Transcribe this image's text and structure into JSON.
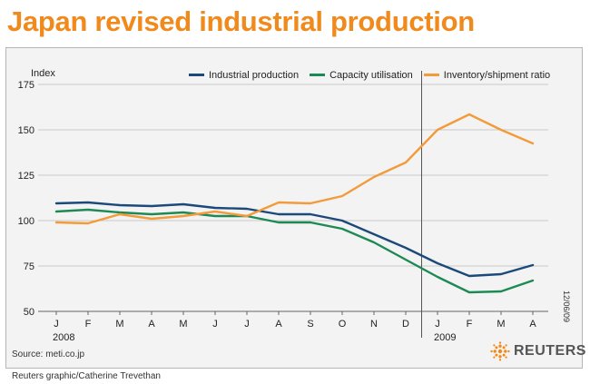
{
  "title": "Japan revised industrial production",
  "source": "Source: meti.co.jp",
  "credit": "Reuters graphic/Catherine Trevethan",
  "date_stamp": "12/06/09",
  "brand": "REUTERS",
  "colors": {
    "title": "#f08a1c",
    "industrial": "#1b4a7a",
    "capacity": "#1d8a55",
    "inventory": "#f39b3a"
  },
  "chart_data": {
    "type": "line",
    "title": "Japan revised industrial production",
    "ylabel": "Index",
    "ylim": [
      50,
      175
    ],
    "yticks": [
      50,
      75,
      100,
      125,
      150,
      175
    ],
    "categories": [
      "J",
      "F",
      "M",
      "A",
      "M",
      "J",
      "J",
      "A",
      "S",
      "O",
      "N",
      "D",
      "J",
      "F",
      "M",
      "A"
    ],
    "year_labels": [
      {
        "label": "2008",
        "start_index": 0
      },
      {
        "label": "2009",
        "start_index": 12
      }
    ],
    "divider_after_index": 11,
    "series": [
      {
        "name": "Industrial production",
        "values": [
          109.5,
          110.0,
          108.5,
          108.0,
          109.0,
          107.0,
          106.5,
          103.5,
          103.5,
          100.0,
          92.5,
          85.0,
          76.5,
          69.5,
          70.5,
          75.5
        ]
      },
      {
        "name": "Capacity utilisation",
        "values": [
          105.0,
          106.0,
          104.5,
          103.5,
          104.5,
          102.5,
          102.5,
          99.0,
          99.0,
          95.5,
          88.0,
          78.5,
          69.0,
          60.5,
          61.0,
          67.0
        ]
      },
      {
        "name": "Inventory/shipment ratio",
        "values": [
          99.0,
          98.5,
          103.5,
          101.0,
          102.5,
          105.0,
          102.5,
          110.0,
          109.5,
          113.5,
          124.0,
          132.0,
          150.0,
          158.5,
          150.0,
          142.5
        ]
      }
    ]
  }
}
